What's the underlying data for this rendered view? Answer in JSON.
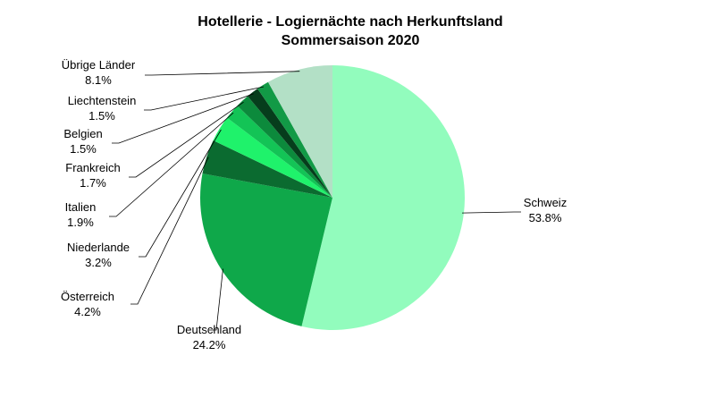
{
  "chart_data": {
    "type": "pie",
    "title": "Hotellerie - Logiernächte nach Herkunftsland",
    "subtitle": "Sommersaison 2020",
    "slices": [
      {
        "label": "Schweiz",
        "value": 53.8,
        "value_label": "53.8%",
        "color": "#92fcbd"
      },
      {
        "label": "Deutschland",
        "value": 24.2,
        "value_label": "24.2%",
        "color": "#0fa84a"
      },
      {
        "label": "Österreich",
        "value": 4.2,
        "value_label": "4.2%",
        "color": "#0b6b30"
      },
      {
        "label": "Niederlande",
        "value": 3.2,
        "value_label": "3.2%",
        "color": "#1ff26b"
      },
      {
        "label": "Italien",
        "value": 1.9,
        "value_label": "1.9%",
        "color": "#13c456"
      },
      {
        "label": "Frankreich",
        "value": 1.7,
        "value_label": "1.7%",
        "color": "#0c8a3c"
      },
      {
        "label": "Belgien",
        "value": 1.5,
        "value_label": "1.5%",
        "color": "#063d1c"
      },
      {
        "label": "Liechtenstein",
        "value": 1.5,
        "value_label": "1.5%",
        "color": "#129a46"
      },
      {
        "label": "Übrige Länder",
        "value": 8.1,
        "value_label": "8.1%",
        "color": "#b3e0c6"
      }
    ]
  }
}
